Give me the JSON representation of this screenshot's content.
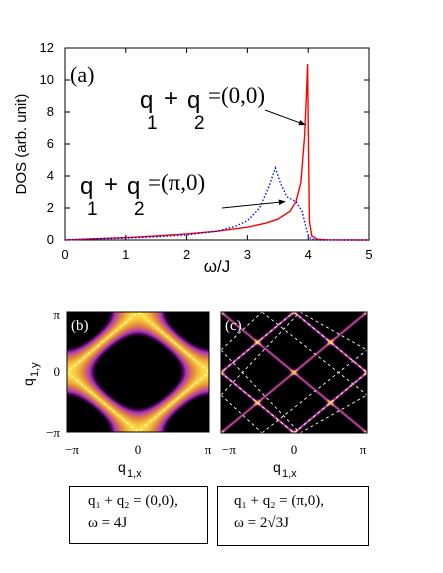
{
  "chart_data": [
    {
      "type": "line",
      "panel_label": "(a)",
      "xlabel": "ω/J",
      "ylabel": "DOS (arb. unit)",
      "xlim": [
        0,
        5
      ],
      "ylim": [
        0,
        12
      ],
      "xticks": [
        "0",
        "1",
        "2",
        "3",
        "4",
        "5"
      ],
      "yticks": [
        "0",
        "2",
        "4",
        "6",
        "8",
        "10",
        "12"
      ],
      "grid": false,
      "series": [
        {
          "label_q1": "q",
          "label_sub1": "1",
          "label_plus": "+",
          "label_q2": "q",
          "label_sub2": "2",
          "label_value": "=(0,0)",
          "color": "#ff0000",
          "style": "solid",
          "x": [
            0.0,
            0.5,
            1.0,
            1.5,
            2.0,
            2.5,
            3.0,
            3.3,
            3.5,
            3.7,
            3.8,
            3.88,
            3.94,
            3.97,
            3.99,
            4.0,
            4.02,
            4.06,
            4.15,
            4.3,
            5.0
          ],
          "y": [
            0.0,
            0.08,
            0.15,
            0.25,
            0.38,
            0.55,
            0.8,
            1.05,
            1.3,
            1.8,
            2.4,
            3.6,
            6.5,
            9.0,
            11.0,
            7.5,
            1.2,
            0.25,
            0.05,
            0.01,
            0.0
          ]
        },
        {
          "label_q1": "q",
          "label_sub1": "1",
          "label_plus": "+",
          "label_q2": "q",
          "label_sub2": "2",
          "label_value": "=(π,0)",
          "color": "#0000ff",
          "style": "dotted",
          "x": [
            0.0,
            0.5,
            1.0,
            1.5,
            2.0,
            2.5,
            2.8,
            3.0,
            3.2,
            3.35,
            3.46,
            3.55,
            3.65,
            3.8,
            3.9,
            3.95,
            4.0,
            4.05,
            4.2,
            5.0
          ],
          "y": [
            0.0,
            0.06,
            0.12,
            0.2,
            0.32,
            0.55,
            0.85,
            1.2,
            2.0,
            3.3,
            4.5,
            3.5,
            2.7,
            2.4,
            1.8,
            1.0,
            0.3,
            0.05,
            0.0,
            0.0
          ]
        }
      ],
      "arrow_targets": [
        {
          "series": "(0,0)",
          "x": 3.95,
          "y": 7.2
        },
        {
          "series": "(π,0)",
          "x": 3.62,
          "y": 2.4
        }
      ]
    },
    {
      "type": "heatmap",
      "panel_label": "(b)",
      "xlabel": "q",
      "xlabel_sub": "1,x",
      "ylabel": "q",
      "ylabel_sub": "1,y",
      "xticks": [
        "−π",
        "0",
        "π"
      ],
      "yticks": [
        "π",
        "0",
        "−π"
      ],
      "colormap": [
        "#000000",
        "#5a0a6e",
        "#b23bb0",
        "#e48a3a",
        "#ffe040"
      ]
    },
    {
      "type": "heatmap",
      "panel_label": "(c)",
      "xlabel": "q",
      "xlabel_sub": "1,x",
      "xticks": [
        "−π",
        "0",
        "π"
      ],
      "colormap": [
        "#000000",
        "#5a0a6e",
        "#b23bb0",
        "#e48a3a",
        "#ffe040"
      ]
    }
  ],
  "captions": {
    "b": {
      "line1": "q₁ + q₂ = (0,0),",
      "line2": "ω = 4J"
    },
    "c": {
      "line1": "q₁ + q₂ = (π,0),",
      "line2": "ω = 2√3J"
    }
  }
}
